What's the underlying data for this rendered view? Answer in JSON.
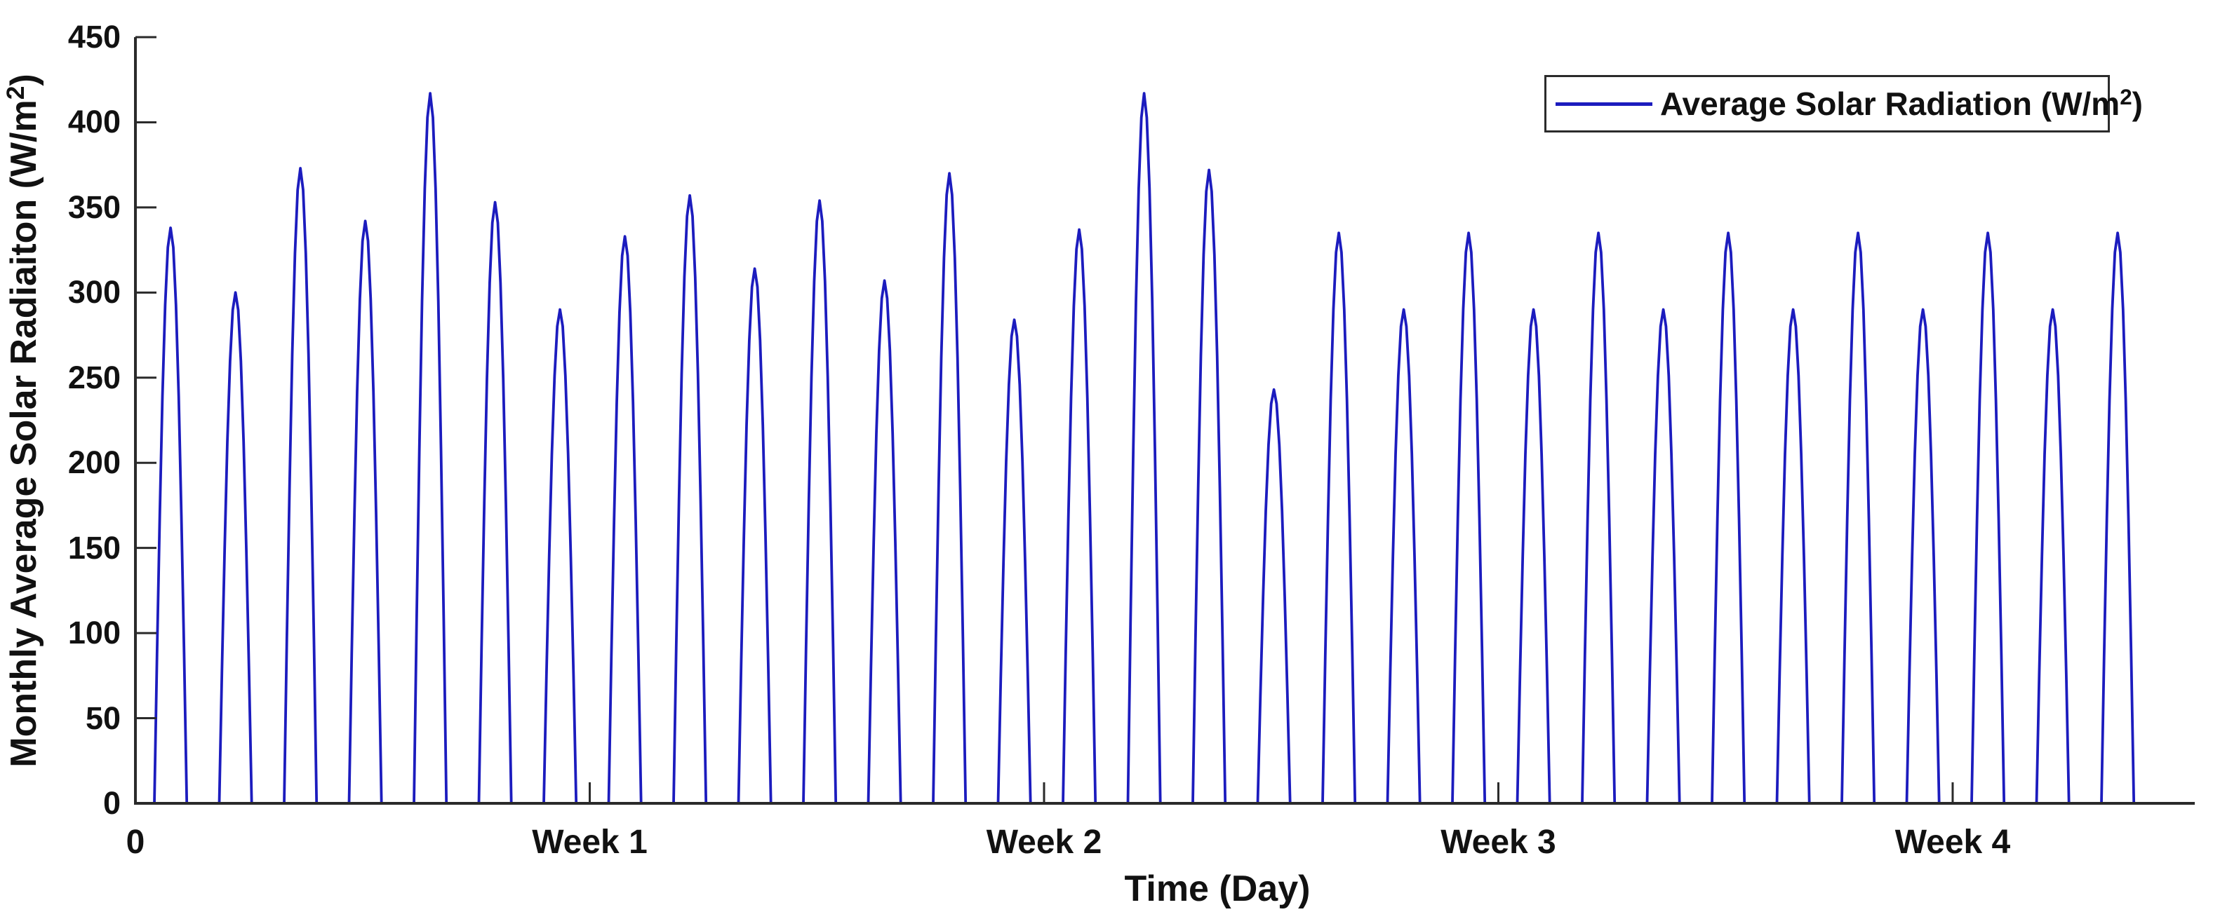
{
  "chart_data": {
    "type": "line",
    "title": "",
    "xlabel": "Time (Day)",
    "ylabel": "Monthly Average Solar Radiaiton (W/m²)",
    "ylabel_parts": {
      "pre": "Monthly Average Solar Radiaiton (W/m",
      "sup": "2",
      "post": ")"
    },
    "x_unit": "day",
    "days": 31,
    "xlim": [
      0,
      31.73
    ],
    "ylim": [
      0,
      450
    ],
    "grid": false,
    "x_ticks": [
      {
        "value": 0,
        "label": "0"
      },
      {
        "value": 7,
        "label": "Week 1"
      },
      {
        "value": 14,
        "label": "Week 2"
      },
      {
        "value": 21,
        "label": "Week 3"
      },
      {
        "value": 28,
        "label": "Week 4"
      }
    ],
    "y_ticks": [
      {
        "value": 0,
        "label": "0"
      },
      {
        "value": 50,
        "label": "50"
      },
      {
        "value": 100,
        "label": "100"
      },
      {
        "value": 150,
        "label": "150"
      },
      {
        "value": 200,
        "label": "200"
      },
      {
        "value": 250,
        "label": "250"
      },
      {
        "value": 300,
        "label": "300"
      },
      {
        "value": 350,
        "label": "350"
      },
      {
        "value": 400,
        "label": "400"
      },
      {
        "value": 450,
        "label": "450"
      }
    ],
    "day_shape": {
      "profile": "half-sine",
      "daylight_hours": [
        7,
        19
      ],
      "sample_interval_hours": 1,
      "night_value": 0
    },
    "series": [
      {
        "name": "Average Solar Radiation (W/m²)",
        "color": "#1c1cbe",
        "daily_peak_values": [
          338,
          300,
          373,
          342,
          417,
          353,
          290,
          333,
          357,
          314,
          354,
          307,
          370,
          284,
          337,
          417,
          372,
          243,
          335,
          290,
          335,
          290,
          335,
          290,
          335,
          290,
          335,
          290,
          335,
          290,
          335
        ]
      }
    ],
    "legend": {
      "position": "top-right",
      "border_color": "#2b2b2b",
      "entries": [
        {
          "label": "Average Solar Radiation (W/m²)",
          "label_pre": "Average Solar Radiation (W/m",
          "label_sup": "2",
          "label_post": ")",
          "color": "#1c1cbe"
        }
      ]
    },
    "axis_color": "#2a2a2a",
    "text_color": "#111111",
    "background_color": "#ffffff"
  }
}
